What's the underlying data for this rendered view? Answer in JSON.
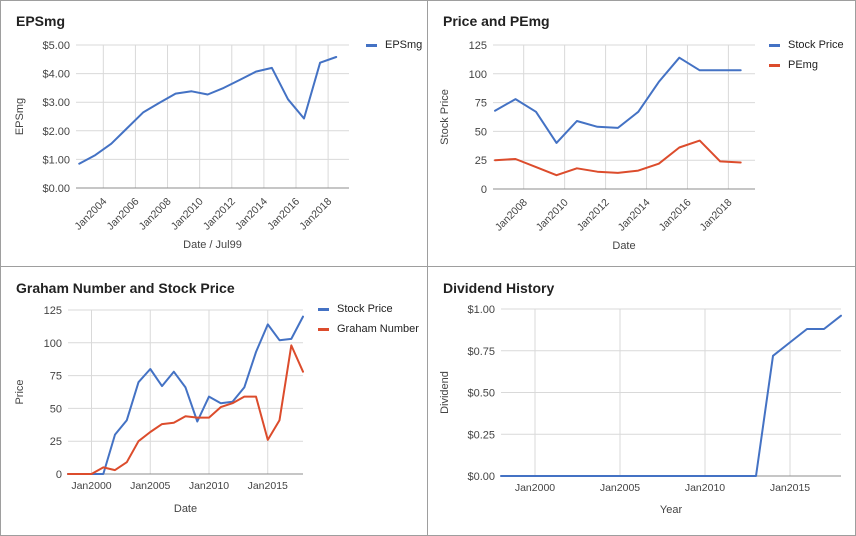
{
  "colors": {
    "blue": "#4472c4",
    "red": "#dc4c2c",
    "grid": "#d9d9d9",
    "axis": "#8c8c8c",
    "label": "#444444"
  },
  "chart_data": [
    {
      "id": "p1",
      "type": "line",
      "title": "EPSmg",
      "xlabel": "Date / Jul99",
      "ylabel": "EPSmg",
      "ylim": [
        0,
        5
      ],
      "xlim": [
        2002.3,
        2019.3
      ],
      "y_ticks": [
        0,
        1,
        2,
        3,
        4,
        5
      ],
      "y_tick_labels": [
        "$0.00",
        "$1.00",
        "$2.00",
        "$3.00",
        "$4.00",
        "$5.00"
      ],
      "x_ticks": [
        2004,
        2006,
        2008,
        2010,
        2012,
        2014,
        2016,
        2018
      ],
      "x_tick_labels": [
        "Jan2004",
        "Jan2006",
        "Jan2008",
        "Jan2010",
        "Jan2012",
        "Jan2014",
        "Jan2016",
        "Jan2018"
      ],
      "legend": "right",
      "series": [
        {
          "name": "EPSmg",
          "color": "#4472c4",
          "x": [
            2002.5,
            2003.5,
            2004.5,
            2005.5,
            2006.5,
            2007.5,
            2008.5,
            2009.5,
            2010.5,
            2011.5,
            2012.5,
            2013.5,
            2014.5,
            2015.5,
            2016.5,
            2017.5,
            2018.5
          ],
          "values": [
            0.85,
            1.15,
            1.55,
            2.1,
            2.65,
            2.98,
            3.3,
            3.38,
            3.27,
            3.5,
            3.78,
            4.07,
            4.2,
            3.1,
            2.43,
            4.38,
            4.58
          ]
        }
      ]
    },
    {
      "id": "p2",
      "type": "line",
      "title": "Price and PEmg",
      "xlabel": "Date",
      "ylabel": "Stock Price",
      "ylim": [
        0,
        125
      ],
      "xlim": [
        2006.5,
        2019.3
      ],
      "y_ticks": [
        0,
        25,
        50,
        75,
        100,
        125
      ],
      "y_tick_labels": [
        "0",
        "25",
        "50",
        "75",
        "100",
        "125"
      ],
      "x_ticks": [
        2008,
        2010,
        2012,
        2014,
        2016,
        2018
      ],
      "x_tick_labels": [
        "Jan2008",
        "Jan2010",
        "Jan2012",
        "Jan2014",
        "Jan2016",
        "Jan2018"
      ],
      "legend": "right",
      "series": [
        {
          "name": "Stock Price",
          "color": "#4472c4",
          "x": [
            2006.6,
            2007.6,
            2008.6,
            2009.6,
            2010.6,
            2011.6,
            2012.6,
            2013.6,
            2014.6,
            2015.6,
            2016.6,
            2017.6,
            2018.6
          ],
          "values": [
            68,
            78,
            67,
            40,
            59,
            54,
            53,
            67,
            93,
            114,
            103,
            103,
            103
          ]
        },
        {
          "name": "PEmg",
          "color": "#dc4c2c",
          "x": [
            2006.6,
            2007.6,
            2008.6,
            2009.6,
            2010.6,
            2011.6,
            2012.6,
            2013.6,
            2014.6,
            2015.6,
            2016.6,
            2017.6,
            2018.6
          ],
          "values": [
            25,
            26,
            19,
            12,
            18,
            15,
            14,
            16,
            22,
            36,
            42,
            24,
            23
          ]
        }
      ]
    },
    {
      "id": "p3",
      "type": "line",
      "title": "Graham Number and Stock Price",
      "xlabel": "Date",
      "ylabel": "Price",
      "ylim": [
        0,
        125
      ],
      "xlim": [
        1998,
        2018
      ],
      "y_ticks": [
        0,
        25,
        50,
        75,
        100,
        125
      ],
      "y_tick_labels": [
        "0",
        "25",
        "50",
        "75",
        "100",
        "125"
      ],
      "x_ticks": [
        2000,
        2005,
        2010,
        2015
      ],
      "x_tick_labels": [
        "Jan2000",
        "Jan2005",
        "Jan2010",
        "Jan2015"
      ],
      "legend": "right",
      "series": [
        {
          "name": "Stock Price",
          "color": "#4472c4",
          "x": [
            1998,
            1999,
            2000,
            2001,
            2002,
            2003,
            2004,
            2005,
            2006,
            2007,
            2008,
            2009,
            2010,
            2011,
            2012,
            2013,
            2014,
            2015,
            2016,
            2017,
            2018
          ],
          "values": [
            0,
            0,
            0,
            0,
            30,
            41,
            70,
            80,
            67,
            78,
            66,
            40,
            59,
            54,
            55,
            66,
            93,
            114,
            102,
            103,
            120
          ]
        },
        {
          "name": "Graham Number",
          "color": "#dc4c2c",
          "x": [
            1998,
            1999,
            2000,
            2001,
            2002,
            2003,
            2004,
            2005,
            2006,
            2007,
            2008,
            2009,
            2010,
            2011,
            2012,
            2013,
            2014,
            2015,
            2016,
            2017,
            2018
          ],
          "values": [
            0,
            0,
            0,
            5,
            3,
            9,
            25,
            32,
            38,
            39,
            44,
            43,
            43,
            51,
            54,
            59,
            59,
            26,
            41,
            98,
            78
          ]
        }
      ]
    },
    {
      "id": "p4",
      "type": "line",
      "title": "Dividend History",
      "xlabel": "Year",
      "ylabel": "Dividend",
      "ylim": [
        0,
        1
      ],
      "xlim": [
        1998,
        2018
      ],
      "y_ticks": [
        0,
        0.25,
        0.5,
        0.75,
        1
      ],
      "y_tick_labels": [
        "$0.00",
        "$0.25",
        "$0.50",
        "$0.75",
        "$1.00"
      ],
      "x_ticks": [
        2000,
        2005,
        2010,
        2015
      ],
      "x_tick_labels": [
        "Jan2000",
        "Jan2005",
        "Jan2010",
        "Jan2015"
      ],
      "legend": "none",
      "series": [
        {
          "color": "#4472c4",
          "x": [
            1998,
            2013,
            2014,
            2015,
            2016,
            2017,
            2018
          ],
          "values": [
            0,
            0,
            0.72,
            0.8,
            0.88,
            0.88,
            0.96
          ]
        }
      ]
    }
  ]
}
